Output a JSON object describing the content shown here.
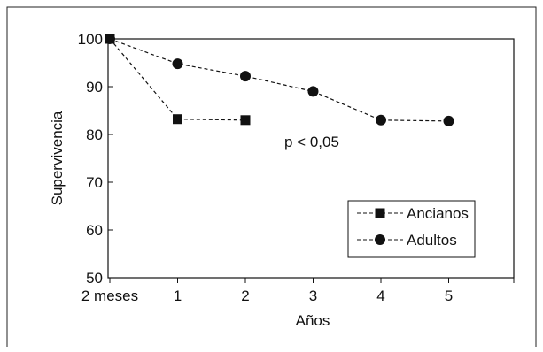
{
  "chart_data": {
    "type": "line",
    "xlabel": "Años",
    "ylabel": "Supervivencia",
    "x_ticks": [
      "2 meses",
      "1",
      "2",
      "3",
      "4",
      "5"
    ],
    "ylim": [
      50,
      100
    ],
    "y_ticks": [
      50,
      60,
      70,
      80,
      90,
      100
    ],
    "annotation": "p < 0,05",
    "legend_position": "bottom-right",
    "grid": false,
    "series": [
      {
        "name": "Ancianos",
        "marker": "square",
        "line_style": "dashed",
        "color": "#111111",
        "points": [
          {
            "x": "2 meses",
            "y": 100
          },
          {
            "x": "1",
            "y": 83.2
          },
          {
            "x": "2",
            "y": 83.0
          }
        ]
      },
      {
        "name": "Adultos",
        "marker": "circle",
        "line_style": "dashed",
        "color": "#111111",
        "points": [
          {
            "x": "2 meses",
            "y": 100
          },
          {
            "x": "1",
            "y": 94.8
          },
          {
            "x": "2",
            "y": 92.2
          },
          {
            "x": "3",
            "y": 89.0
          },
          {
            "x": "4",
            "y": 83.0
          },
          {
            "x": "5",
            "y": 82.8
          }
        ]
      }
    ]
  }
}
